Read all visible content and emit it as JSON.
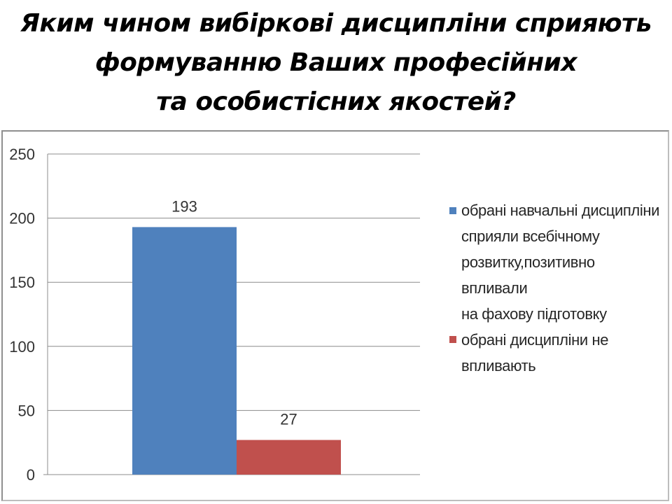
{
  "title_lines": [
    "Яким чином вибіркові дисципліни сприяють",
    "формуванню Ваших професійних",
    "та особистісних якостей?"
  ],
  "chart_data": {
    "type": "bar",
    "categories": [
      ""
    ],
    "series": [
      {
        "name": "обрані навчальні дисципліни сприяли всебічному розвитку,позитивно впливали на фахову підготовку",
        "values": [
          193
        ],
        "color": "#4f81bd"
      },
      {
        "name": "обрані дисципліни не впливають",
        "values": [
          27
        ],
        "color": "#c0504d"
      }
    ],
    "data_labels": [
      "193",
      "27"
    ],
    "yticks": [
      0,
      50,
      100,
      150,
      200,
      250
    ],
    "ylim": [
      0,
      250
    ],
    "grid": true,
    "legend_position": "right",
    "legend_lines": [
      [
        "обрані навчальні дисципліни",
        "сприяли всебічному",
        "розвитку,позитивно впливали",
        "на фахову підготовку"
      ],
      [
        "обрані дисципліни не",
        "впливають"
      ]
    ]
  }
}
